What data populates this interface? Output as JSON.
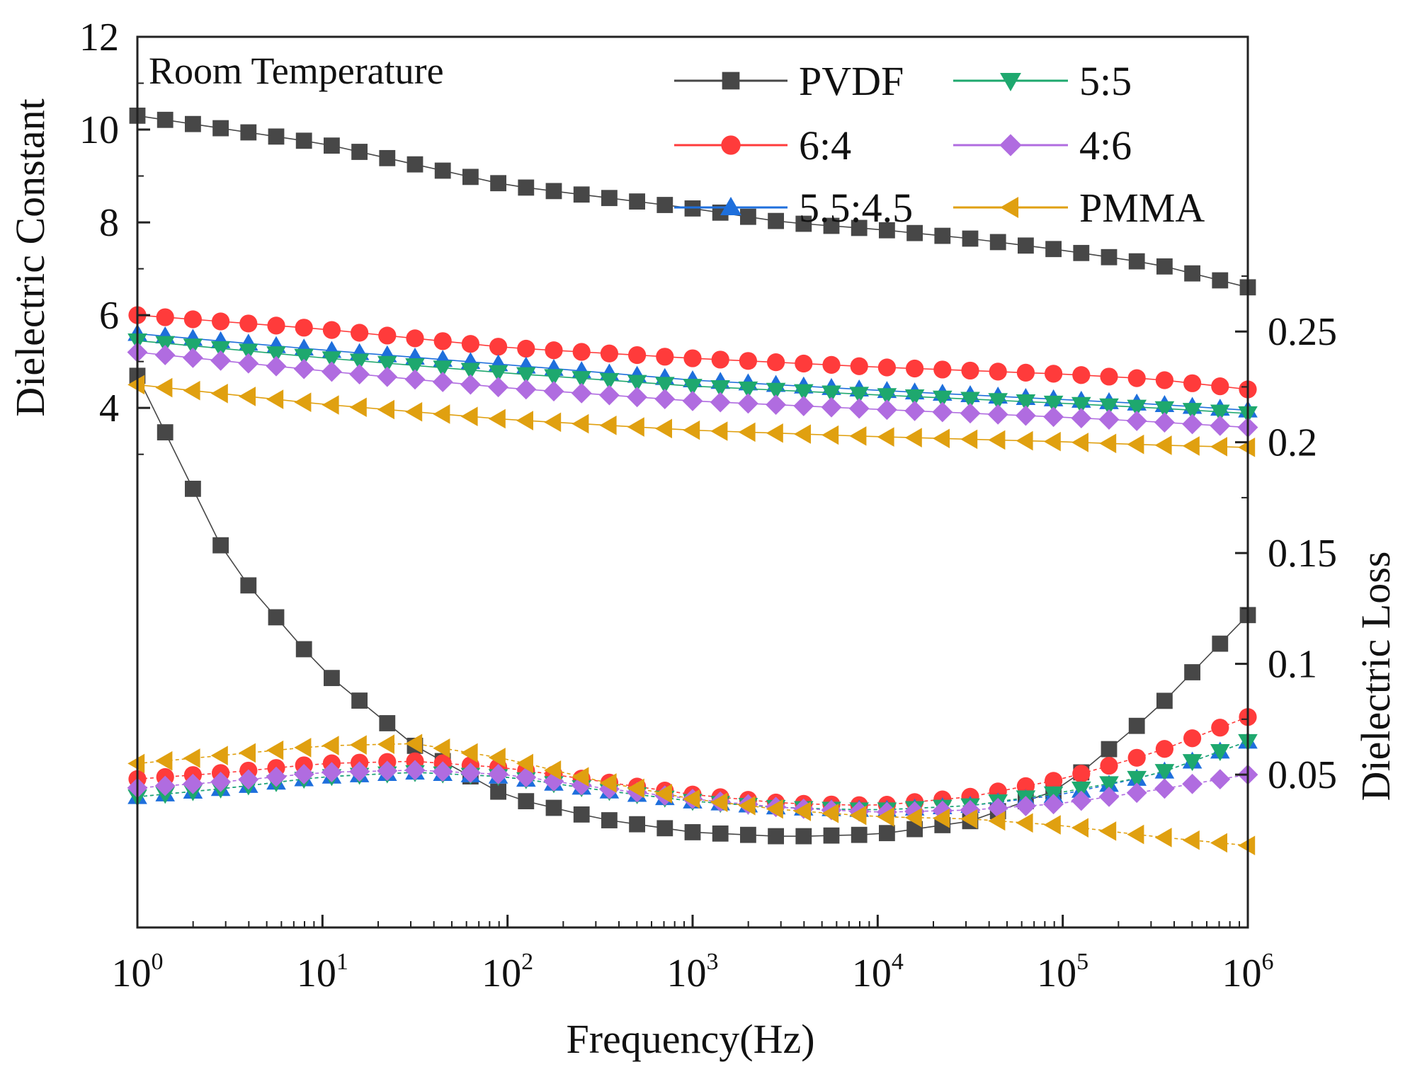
{
  "chart_data": {
    "type": "scatter",
    "annotation": "Room Temperature",
    "xlabel": "Frequency(Hz)",
    "ylabel_left": "Dielectric Constant",
    "ylabel_right": "Dielectric Loss",
    "x_scale": "log",
    "xlim": [
      1,
      1000000
    ],
    "x_ticks": [
      {
        "base": "10",
        "exp": "0",
        "value": 1
      },
      {
        "base": "10",
        "exp": "1",
        "value": 10
      },
      {
        "base": "10",
        "exp": "2",
        "value": 100
      },
      {
        "base": "10",
        "exp": "3",
        "value": 1000
      },
      {
        "base": "10",
        "exp": "4",
        "value": 10000
      },
      {
        "base": "10",
        "exp": "5",
        "value": 100000
      },
      {
        "base": "10",
        "exp": "6",
        "value": 1000000
      }
    ],
    "ylim_left": [
      -7.2,
      12
    ],
    "y_ticks_left": [
      "4",
      "6",
      "8",
      "10",
      "12"
    ],
    "ylim_right": [
      -0.019,
      0.383
    ],
    "y_ticks_right": [
      "0.05",
      "0.1",
      "0.15",
      "0.2",
      "0.25"
    ],
    "grid": false,
    "legend_position": "top-right",
    "legend_columns": 2,
    "series": [
      {
        "name": "PVDF",
        "color": "#474747",
        "marker": "square",
        "dielectric_constant": [
          [
            0,
            10.3
          ],
          [
            1,
            9.7
          ],
          [
            2,
            8.8
          ],
          [
            3,
            8.3
          ],
          [
            3.5,
            8.0
          ],
          [
            4,
            7.85
          ],
          [
            4.5,
            7.65
          ],
          [
            5,
            7.4
          ],
          [
            5.5,
            7.1
          ],
          [
            6,
            6.6
          ]
        ],
        "dielectric_loss": [
          [
            0,
            0.23
          ],
          [
            0.5,
            0.145
          ],
          [
            1,
            0.097
          ],
          [
            1.5,
            0.063
          ],
          [
            2,
            0.04
          ],
          [
            2.5,
            0.03
          ],
          [
            3,
            0.024
          ],
          [
            3.5,
            0.022
          ],
          [
            4,
            0.023
          ],
          [
            4.5,
            0.029
          ],
          [
            5,
            0.044
          ],
          [
            5.5,
            0.079
          ],
          [
            6,
            0.122
          ]
        ]
      },
      {
        "name": "6:4",
        "color": "#ff3b3b",
        "marker": "circle",
        "dielectric_constant": [
          [
            0,
            6.0
          ],
          [
            1,
            5.7
          ],
          [
            2,
            5.3
          ],
          [
            3,
            5.07
          ],
          [
            4,
            4.88
          ],
          [
            5,
            4.73
          ],
          [
            5.5,
            4.62
          ],
          [
            6,
            4.4
          ]
        ],
        "dielectric_loss": [
          [
            0,
            0.048
          ],
          [
            0.5,
            0.051
          ],
          [
            1,
            0.055
          ],
          [
            1.5,
            0.056
          ],
          [
            2,
            0.053
          ],
          [
            2.5,
            0.047
          ],
          [
            3,
            0.041
          ],
          [
            3.5,
            0.037
          ],
          [
            4,
            0.036
          ],
          [
            4.5,
            0.04
          ],
          [
            5,
            0.048
          ],
          [
            5.5,
            0.06
          ],
          [
            6,
            0.076
          ]
        ]
      },
      {
        "name": "5.5:4.5",
        "color": "#1e6fdc",
        "marker": "triangle-up",
        "dielectric_constant": [
          [
            0,
            5.6
          ],
          [
            1,
            5.25
          ],
          [
            2,
            4.93
          ],
          [
            3,
            4.6
          ],
          [
            4,
            4.38
          ],
          [
            5,
            4.18
          ],
          [
            5.5,
            4.08
          ],
          [
            6,
            3.95
          ]
        ],
        "dielectric_loss": [
          [
            0,
            0.04
          ],
          [
            0.5,
            0.044
          ],
          [
            1,
            0.049
          ],
          [
            1.5,
            0.051
          ],
          [
            2,
            0.049
          ],
          [
            2.5,
            0.043
          ],
          [
            3,
            0.038
          ],
          [
            3.5,
            0.035
          ],
          [
            4,
            0.034
          ],
          [
            4.5,
            0.036
          ],
          [
            5,
            0.041
          ],
          [
            5.5,
            0.05
          ],
          [
            6,
            0.065
          ]
        ]
      },
      {
        "name": "5:5",
        "color": "#1ea86e",
        "marker": "triangle-down",
        "dielectric_constant": [
          [
            0,
            5.45
          ],
          [
            1,
            5.08
          ],
          [
            2,
            4.75
          ],
          [
            3,
            4.47
          ],
          [
            4,
            4.28
          ],
          [
            5,
            4.1
          ],
          [
            5.5,
            4.0
          ],
          [
            6,
            3.88
          ]
        ],
        "dielectric_loss": [
          [
            0,
            0.04
          ],
          [
            0.5,
            0.044
          ],
          [
            1,
            0.049
          ],
          [
            1.5,
            0.051
          ],
          [
            2,
            0.049
          ],
          [
            2.5,
            0.043
          ],
          [
            3,
            0.038
          ],
          [
            3.5,
            0.035
          ],
          [
            4,
            0.034
          ],
          [
            4.5,
            0.036
          ],
          [
            5,
            0.042
          ],
          [
            5.5,
            0.05
          ],
          [
            6,
            0.065
          ]
        ]
      },
      {
        "name": "4:6",
        "color": "#b06ce0",
        "marker": "diamond",
        "dielectric_constant": [
          [
            0,
            5.2
          ],
          [
            1,
            4.8
          ],
          [
            2,
            4.43
          ],
          [
            3,
            4.15
          ],
          [
            4,
            3.97
          ],
          [
            5,
            3.8
          ],
          [
            5.5,
            3.7
          ],
          [
            6,
            3.58
          ]
        ],
        "dielectric_loss": [
          [
            0,
            0.044
          ],
          [
            0.5,
            0.047
          ],
          [
            1,
            0.051
          ],
          [
            1.5,
            0.052
          ],
          [
            2,
            0.05
          ],
          [
            2.5,
            0.044
          ],
          [
            3,
            0.039
          ],
          [
            3.5,
            0.035
          ],
          [
            4,
            0.033
          ],
          [
            4.5,
            0.034
          ],
          [
            5,
            0.037
          ],
          [
            5.5,
            0.043
          ],
          [
            6,
            0.05
          ]
        ]
      },
      {
        "name": "PMMA",
        "color": "#e0a010",
        "marker": "triangle-left",
        "dielectric_constant": [
          [
            0,
            4.5
          ],
          [
            1,
            4.08
          ],
          [
            2,
            3.75
          ],
          [
            3,
            3.52
          ],
          [
            4,
            3.38
          ],
          [
            5,
            3.27
          ],
          [
            5.5,
            3.2
          ],
          [
            6,
            3.15
          ]
        ],
        "dielectric_loss": [
          [
            0,
            0.055
          ],
          [
            0.5,
            0.059
          ],
          [
            1,
            0.063
          ],
          [
            1.5,
            0.064
          ],
          [
            2,
            0.057
          ],
          [
            2.5,
            0.047
          ],
          [
            3,
            0.039
          ],
          [
            3.5,
            0.034
          ],
          [
            4,
            0.031
          ],
          [
            4.5,
            0.03
          ],
          [
            5,
            0.027
          ],
          [
            5.5,
            0.022
          ],
          [
            6,
            0.018
          ]
        ]
      }
    ]
  }
}
